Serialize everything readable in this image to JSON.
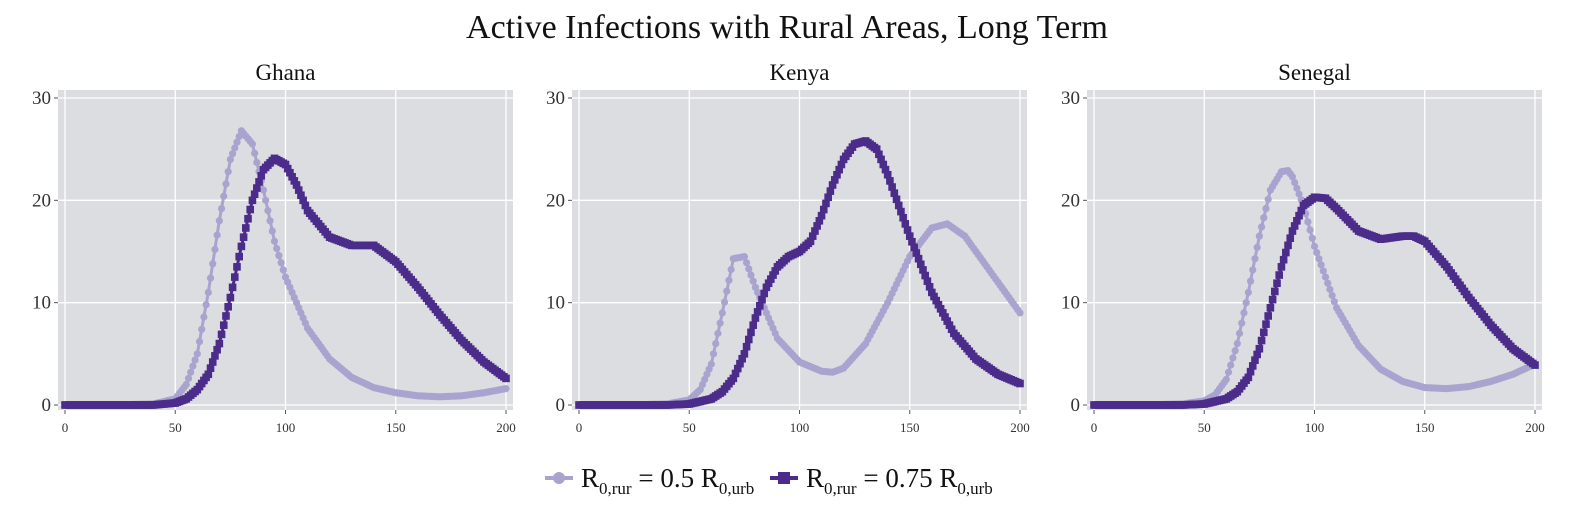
{
  "title": "Active Infections with Rural Areas, Long Term",
  "colors": {
    "panel_bg": "#dcdde0",
    "grid": "#ffffff",
    "series_light": "#a9a4cf",
    "series_dark": "#4b2c8a"
  },
  "legend": {
    "placement": "bottom-center",
    "items": [
      {
        "prefix": "R",
        "sub1": "0,rur",
        "mid": " = 0.5 R",
        "sub2": "0,urb",
        "marker": "circle",
        "color_key": "series_light"
      },
      {
        "prefix": "R",
        "sub1": "0,rur",
        "mid": " = 0.75 R",
        "sub2": "0,urb",
        "marker": "square",
        "color_key": "series_dark"
      }
    ]
  },
  "chart_data": [
    {
      "type": "line",
      "title": "Ghana",
      "xlim": [
        0,
        200
      ],
      "ylim": [
        0,
        30
      ],
      "x_ticks": [
        0,
        50,
        100,
        150,
        200
      ],
      "y_ticks": [
        0,
        10,
        20,
        30
      ],
      "grid": true,
      "series": [
        {
          "name": "R0,rur = 0.5 R0,urb",
          "marker": "circle",
          "x": [
            0,
            20,
            40,
            50,
            55,
            60,
            65,
            70,
            75,
            80,
            85,
            90,
            95,
            100,
            110,
            120,
            130,
            140,
            150,
            160,
            170,
            180,
            190,
            200
          ],
          "y": [
            0,
            0,
            0.1,
            0.6,
            2,
            5,
            11,
            18,
            24,
            26.8,
            25.5,
            21,
            16,
            12.5,
            7.5,
            4.5,
            2.7,
            1.7,
            1.2,
            0.9,
            0.8,
            0.9,
            1.2,
            1.6
          ]
        },
        {
          "name": "R0,rur = 0.75 R0,urb",
          "marker": "square",
          "x": [
            0,
            20,
            40,
            50,
            55,
            60,
            65,
            70,
            75,
            80,
            85,
            90,
            95,
            100,
            105,
            110,
            120,
            130,
            140,
            150,
            160,
            170,
            180,
            190,
            200
          ],
          "y": [
            0,
            0,
            0,
            0.2,
            0.6,
            1.5,
            3,
            6,
            10.5,
            15.5,
            20,
            23,
            24.1,
            23.5,
            21.5,
            19,
            16.4,
            15.6,
            15.6,
            14,
            11.5,
            8.8,
            6.3,
            4.2,
            2.6
          ]
        }
      ]
    },
    {
      "type": "line",
      "title": "Kenya",
      "xlim": [
        0,
        200
      ],
      "ylim": [
        0,
        30
      ],
      "x_ticks": [
        0,
        50,
        100,
        150,
        200
      ],
      "y_ticks": [
        0,
        10,
        20,
        30
      ],
      "grid": true,
      "series": [
        {
          "name": "R0,rur = 0.5 R0,urb",
          "marker": "circle",
          "x": [
            0,
            20,
            40,
            50,
            55,
            60,
            65,
            70,
            75,
            80,
            90,
            100,
            110,
            115,
            120,
            130,
            140,
            150,
            160,
            167,
            175,
            185,
            200
          ],
          "y": [
            0,
            0,
            0.1,
            0.5,
            1.5,
            4,
            9,
            14.3,
            14.5,
            11.5,
            6.5,
            4.2,
            3.3,
            3.2,
            3.6,
            6,
            10,
            14.5,
            17.3,
            17.7,
            16.5,
            13.5,
            9
          ]
        },
        {
          "name": "R0,rur = 0.75 R0,urb",
          "marker": "square",
          "x": [
            0,
            20,
            40,
            50,
            60,
            65,
            70,
            75,
            80,
            85,
            90,
            95,
            100,
            105,
            110,
            115,
            120,
            125,
            130,
            135,
            140,
            150,
            160,
            170,
            180,
            190,
            200
          ],
          "y": [
            0,
            0,
            0,
            0.1,
            0.6,
            1.3,
            2.6,
            5,
            8.5,
            11.5,
            13.5,
            14.5,
            15,
            16,
            18.5,
            21.5,
            24,
            25.5,
            25.8,
            25,
            22.5,
            16.5,
            11,
            7,
            4.5,
            3,
            2.1
          ]
        }
      ]
    },
    {
      "type": "line",
      "title": "Senegal",
      "xlim": [
        0,
        200
      ],
      "ylim": [
        0,
        30
      ],
      "x_ticks": [
        0,
        50,
        100,
        150,
        200
      ],
      "y_ticks": [
        0,
        10,
        20,
        30
      ],
      "grid": true,
      "series": [
        {
          "name": "R0,rur = 0.5 R0,urb",
          "marker": "circle",
          "x": [
            0,
            20,
            40,
            50,
            55,
            60,
            65,
            70,
            75,
            80,
            85,
            88,
            90,
            95,
            100,
            110,
            120,
            130,
            140,
            150,
            160,
            170,
            180,
            190,
            200
          ],
          "y": [
            0,
            0,
            0.1,
            0.4,
            1,
            2.5,
            6,
            11,
            16.5,
            21,
            22.8,
            22.9,
            22.3,
            19.5,
            15.5,
            9.5,
            5.8,
            3.5,
            2.3,
            1.7,
            1.6,
            1.8,
            2.3,
            3,
            4
          ]
        },
        {
          "name": "R0,rur = 0.75 R0,urb",
          "marker": "square",
          "x": [
            0,
            20,
            40,
            50,
            60,
            65,
            70,
            75,
            80,
            85,
            90,
            95,
            100,
            105,
            110,
            120,
            130,
            140,
            145,
            150,
            160,
            170,
            180,
            190,
            200
          ],
          "y": [
            0,
            0,
            0,
            0.1,
            0.6,
            1.3,
            2.7,
            5.5,
            9.5,
            13.5,
            17,
            19.5,
            20.3,
            20.2,
            19.2,
            17,
            16.2,
            16.5,
            16.5,
            16,
            13.5,
            10.5,
            7.8,
            5.5,
            3.9
          ]
        }
      ]
    }
  ]
}
